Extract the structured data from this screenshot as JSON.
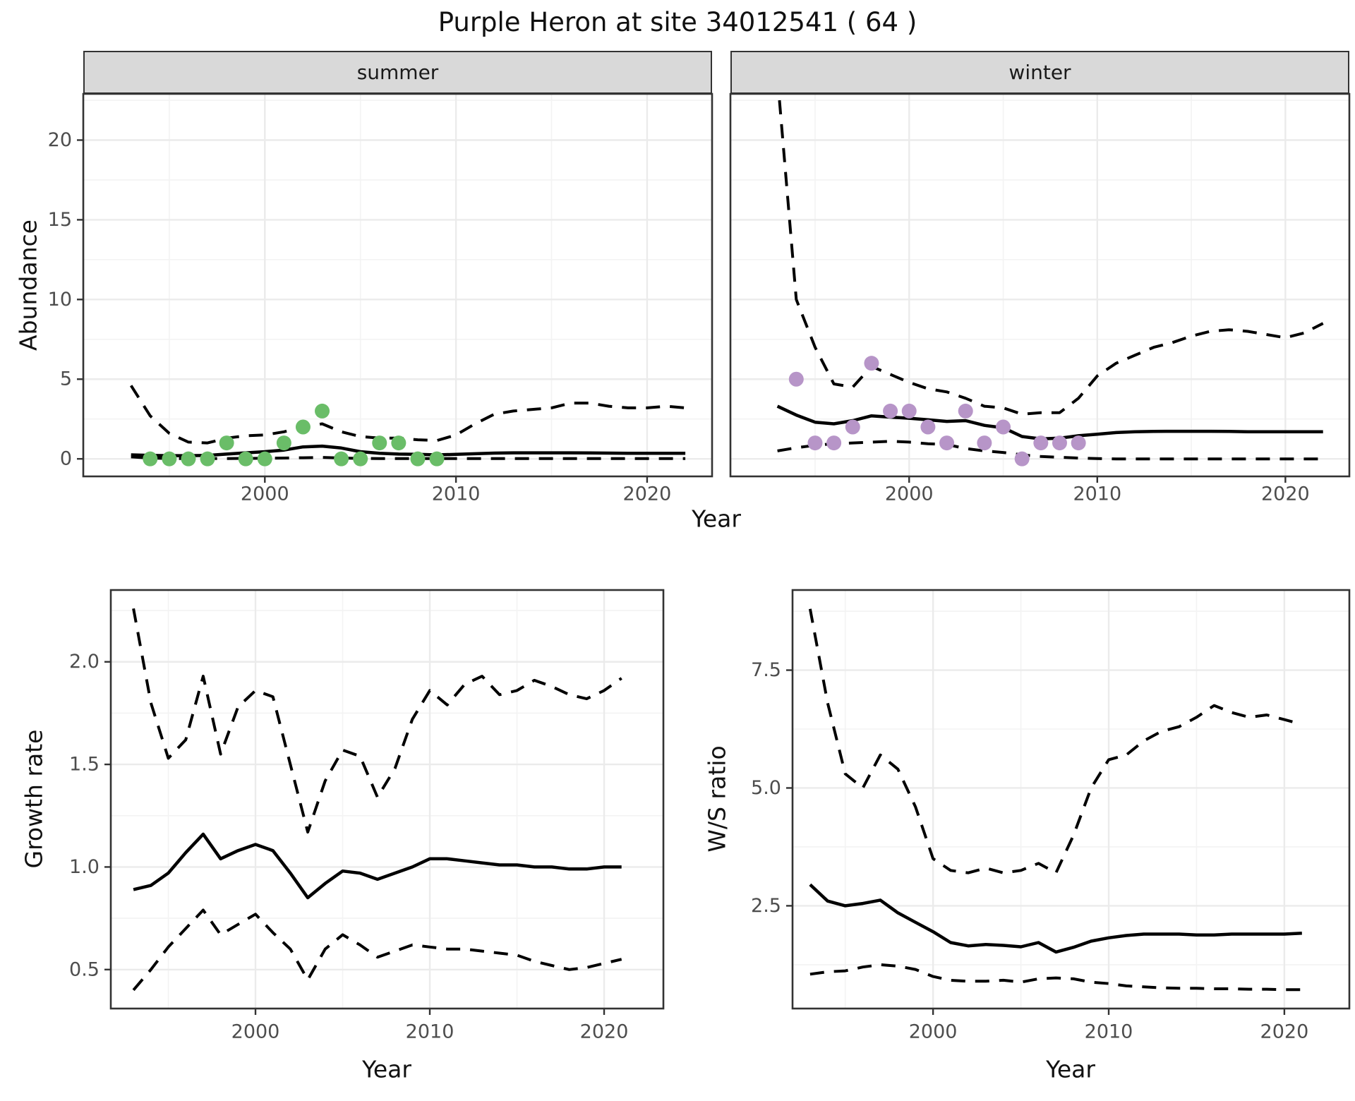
{
  "title": "Purple Heron at site 34012541 ( 64 )",
  "facets": {
    "summer": "summer",
    "winter": "winter"
  },
  "axis_titles": {
    "abundance": "Abundance",
    "growth_rate": "Growth rate",
    "ws_ratio": "W/S ratio",
    "year_top": "Year",
    "year_bottom_left": "Year",
    "year_bottom_right": "Year"
  },
  "colors": {
    "summer_point": "#6abd68",
    "winter_point": "#b795c8",
    "line": "#000000",
    "strip_bg": "#d9d9d9",
    "grid_major": "#ebebeb",
    "grid_minor": "#f3f3f3",
    "axis_text": "#4d4d4d",
    "panel_border": "#333333"
  },
  "chart_data": [
    {
      "id": "abundance_summer",
      "type": "line",
      "facet": "summer",
      "xlabel": "Year",
      "ylabel": "Abundance",
      "x": [
        1993,
        1994,
        1995,
        1996,
        1997,
        1998,
        1999,
        2000,
        2001,
        2002,
        2003,
        2004,
        2005,
        2006,
        2007,
        2008,
        2009,
        2010,
        2011,
        2012,
        2013,
        2014,
        2015,
        2016,
        2017,
        2018,
        2019,
        2020,
        2021,
        2022
      ],
      "series": [
        {
          "name": "fit",
          "style": "solid",
          "values": [
            0.25,
            0.22,
            0.2,
            0.2,
            0.22,
            0.3,
            0.38,
            0.45,
            0.55,
            0.75,
            0.8,
            0.68,
            0.45,
            0.35,
            0.3,
            0.28,
            0.25,
            0.28,
            0.32,
            0.36,
            0.38,
            0.38,
            0.38,
            0.38,
            0.37,
            0.36,
            0.35,
            0.35,
            0.35,
            0.35
          ]
        },
        {
          "name": "ci_upper",
          "style": "dashed",
          "values": [
            4.6,
            2.7,
            1.6,
            1.05,
            1.0,
            1.3,
            1.45,
            1.5,
            1.7,
            2.0,
            2.2,
            1.7,
            1.4,
            1.3,
            1.3,
            1.2,
            1.15,
            1.5,
            2.2,
            2.8,
            3.0,
            3.1,
            3.2,
            3.5,
            3.5,
            3.3,
            3.2,
            3.2,
            3.3,
            3.2
          ]
        },
        {
          "name": "ci_lower",
          "style": "dashed",
          "values": [
            0.12,
            0.05,
            0.02,
            0.02,
            0.02,
            0.02,
            0.03,
            0.04,
            0.05,
            0.07,
            0.09,
            0.05,
            0.03,
            0.02,
            0.02,
            0.02,
            0.02,
            0.02,
            0.02,
            0.02,
            0.02,
            0.02,
            0.02,
            0.02,
            0.02,
            0.02,
            0.02,
            0.02,
            0.02,
            0.02
          ]
        }
      ],
      "points": {
        "name": "observed",
        "x": [
          1994,
          1995,
          1996,
          1997,
          1998,
          1999,
          2000,
          2001,
          2002,
          2003,
          2004,
          2005,
          2006,
          2007,
          2008,
          2009
        ],
        "y": [
          0,
          0,
          0,
          0,
          1,
          0,
          0,
          1,
          2,
          3,
          0,
          0,
          1,
          1,
          0,
          0
        ]
      },
      "yticks": [
        {
          "value": 20,
          "label": "20"
        },
        {
          "value": 15,
          "label": "15"
        },
        {
          "value": 10,
          "label": "10"
        },
        {
          "value": 5,
          "label": "5"
        },
        {
          "value": 0,
          "label": "0"
        }
      ],
      "xticks": [
        {
          "value": 2000,
          "label": "2000"
        },
        {
          "value": 2010,
          "label": "2010"
        },
        {
          "value": 2020,
          "label": "2020"
        }
      ],
      "ylim": [
        -1.1,
        22.9
      ],
      "xlim": [
        1990.5,
        2023.4
      ]
    },
    {
      "id": "abundance_winter",
      "type": "line",
      "facet": "winter",
      "xlabel": "Year",
      "ylabel": "Abundance",
      "x": [
        1993,
        1994,
        1995,
        1996,
        1997,
        1998,
        1999,
        2000,
        2001,
        2002,
        2003,
        2004,
        2005,
        2006,
        2007,
        2008,
        2009,
        2010,
        2011,
        2012,
        2013,
        2014,
        2015,
        2016,
        2017,
        2018,
        2019,
        2020,
        2021,
        2022
      ],
      "series": [
        {
          "name": "fit",
          "style": "solid",
          "values": [
            3.3,
            2.75,
            2.3,
            2.2,
            2.4,
            2.7,
            2.62,
            2.55,
            2.45,
            2.35,
            2.4,
            2.1,
            1.95,
            1.4,
            1.25,
            1.3,
            1.45,
            1.55,
            1.65,
            1.7,
            1.72,
            1.73,
            1.73,
            1.73,
            1.72,
            1.7,
            1.7,
            1.7,
            1.7,
            1.7
          ]
        },
        {
          "name": "ci_upper",
          "style": "dashed",
          "values": [
            24,
            10,
            7,
            4.7,
            4.5,
            5.8,
            5.3,
            4.8,
            4.4,
            4.2,
            3.8,
            3.3,
            3.2,
            2.8,
            2.9,
            2.9,
            3.8,
            5.2,
            6.0,
            6.5,
            7.0,
            7.3,
            7.7,
            8.0,
            8.1,
            8.0,
            7.8,
            7.6,
            7.9,
            8.5
          ]
        },
        {
          "name": "ci_lower",
          "style": "dashed",
          "values": [
            0.5,
            0.7,
            0.85,
            0.95,
            1.0,
            1.05,
            1.1,
            1.05,
            0.95,
            0.9,
            0.65,
            0.5,
            0.4,
            0.25,
            0.15,
            0.1,
            0.05,
            0.02,
            0,
            0,
            0,
            0,
            0,
            0,
            0,
            0,
            0,
            0,
            0,
            0
          ]
        }
      ],
      "points": {
        "name": "observed",
        "x": [
          1994,
          1995,
          1996,
          1997,
          1998,
          1999,
          2000,
          2001,
          2002,
          2003,
          2004,
          2005,
          2006,
          2007,
          2008,
          2009
        ],
        "y": [
          5,
          1,
          1,
          2,
          6,
          3,
          3,
          2,
          1,
          3,
          1,
          2,
          0,
          1,
          1,
          1
        ]
      },
      "yticks": [
        {
          "value": 20,
          "label": "20"
        },
        {
          "value": 15,
          "label": "15"
        },
        {
          "value": 10,
          "label": "10"
        },
        {
          "value": 5,
          "label": "5"
        },
        {
          "value": 0,
          "label": "0"
        }
      ],
      "xticks": [
        {
          "value": 2000,
          "label": "2000"
        },
        {
          "value": 2010,
          "label": "2010"
        },
        {
          "value": 2020,
          "label": "2020"
        }
      ],
      "ylim": [
        -1.1,
        22.9
      ],
      "xlim": [
        1990.5,
        2023.4
      ]
    },
    {
      "id": "growth_rate",
      "type": "line",
      "facet": null,
      "xlabel": "Year",
      "ylabel": "Growth rate",
      "x": [
        1993,
        1994,
        1995,
        1996,
        1997,
        1998,
        1999,
        2000,
        2001,
        2002,
        2003,
        2004,
        2005,
        2006,
        2007,
        2008,
        2009,
        2010,
        2011,
        2012,
        2013,
        2014,
        2015,
        2016,
        2017,
        2018,
        2019,
        2020,
        2021
      ],
      "series": [
        {
          "name": "fit",
          "style": "solid",
          "values": [
            0.89,
            0.91,
            0.97,
            1.07,
            1.16,
            1.04,
            1.08,
            1.11,
            1.08,
            0.97,
            0.85,
            0.92,
            0.98,
            0.97,
            0.94,
            0.97,
            1.0,
            1.04,
            1.04,
            1.03,
            1.02,
            1.01,
            1.01,
            1.0,
            1.0,
            0.99,
            0.99,
            1.0,
            1.0
          ]
        },
        {
          "name": "ci_upper",
          "style": "dashed",
          "values": [
            2.26,
            1.8,
            1.53,
            1.62,
            1.93,
            1.55,
            1.78,
            1.86,
            1.83,
            1.5,
            1.17,
            1.42,
            1.57,
            1.54,
            1.34,
            1.48,
            1.72,
            1.86,
            1.79,
            1.89,
            1.93,
            1.84,
            1.86,
            1.91,
            1.88,
            1.84,
            1.82,
            1.86,
            1.92
          ]
        },
        {
          "name": "ci_lower",
          "style": "dashed",
          "values": [
            0.4,
            0.5,
            0.61,
            0.7,
            0.79,
            0.67,
            0.72,
            0.77,
            0.68,
            0.6,
            0.45,
            0.6,
            0.67,
            0.62,
            0.56,
            0.59,
            0.62,
            0.61,
            0.6,
            0.6,
            0.59,
            0.58,
            0.57,
            0.54,
            0.52,
            0.5,
            0.51,
            0.53,
            0.55
          ]
        }
      ],
      "points": null,
      "yticks": [
        {
          "value": 2.0,
          "label": "2.0"
        },
        {
          "value": 1.5,
          "label": "1.5"
        },
        {
          "value": 1.0,
          "label": "1.0"
        },
        {
          "value": 0.5,
          "label": "0.5"
        }
      ],
      "xticks": [
        {
          "value": 2000,
          "label": "2000"
        },
        {
          "value": 2010,
          "label": "2010"
        },
        {
          "value": 2020,
          "label": "2020"
        }
      ],
      "ylim": [
        0.31,
        2.35
      ],
      "xlim": [
        1991.7,
        2023.4
      ]
    },
    {
      "id": "ws_ratio",
      "type": "line",
      "facet": null,
      "xlabel": "Year",
      "ylabel": "W/S ratio",
      "x": [
        1993,
        1994,
        1995,
        1996,
        1997,
        1998,
        1999,
        2000,
        2001,
        2002,
        2003,
        2004,
        2005,
        2006,
        2007,
        2008,
        2009,
        2010,
        2011,
        2012,
        2013,
        2014,
        2015,
        2016,
        2017,
        2018,
        2019,
        2020,
        2021
      ],
      "series": [
        {
          "name": "fit",
          "style": "solid",
          "values": [
            2.95,
            2.6,
            2.5,
            2.55,
            2.62,
            2.35,
            2.15,
            1.95,
            1.72,
            1.65,
            1.68,
            1.66,
            1.63,
            1.72,
            1.52,
            1.62,
            1.75,
            1.82,
            1.87,
            1.9,
            1.9,
            1.9,
            1.88,
            1.88,
            1.9,
            1.9,
            1.9,
            1.9,
            1.92
          ]
        },
        {
          "name": "ci_upper",
          "style": "dashed",
          "values": [
            8.8,
            6.8,
            5.3,
            5.0,
            5.7,
            5.4,
            4.6,
            3.5,
            3.25,
            3.2,
            3.3,
            3.2,
            3.25,
            3.4,
            3.2,
            4.0,
            5.0,
            5.6,
            5.7,
            6.0,
            6.2,
            6.3,
            6.5,
            6.75,
            6.6,
            6.5,
            6.55,
            6.45,
            6.35
          ]
        },
        {
          "name": "ci_lower",
          "style": "dashed",
          "values": [
            1.05,
            1.1,
            1.12,
            1.2,
            1.25,
            1.22,
            1.15,
            1.0,
            0.92,
            0.9,
            0.9,
            0.92,
            0.88,
            0.95,
            0.97,
            0.95,
            0.88,
            0.85,
            0.8,
            0.78,
            0.76,
            0.75,
            0.75,
            0.74,
            0.74,
            0.73,
            0.73,
            0.72,
            0.72
          ]
        }
      ],
      "points": null,
      "yticks": [
        {
          "value": 7.5,
          "label": "7.5"
        },
        {
          "value": 5.0,
          "label": "5.0"
        },
        {
          "value": 2.5,
          "label": "2.5"
        }
      ],
      "xticks": [
        {
          "value": 2000,
          "label": "2000"
        },
        {
          "value": 2010,
          "label": "2010"
        },
        {
          "value": 2020,
          "label": "2020"
        }
      ],
      "ylim": [
        0.32,
        9.2
      ],
      "xlim": [
        1992.0,
        2023.7
      ]
    }
  ]
}
